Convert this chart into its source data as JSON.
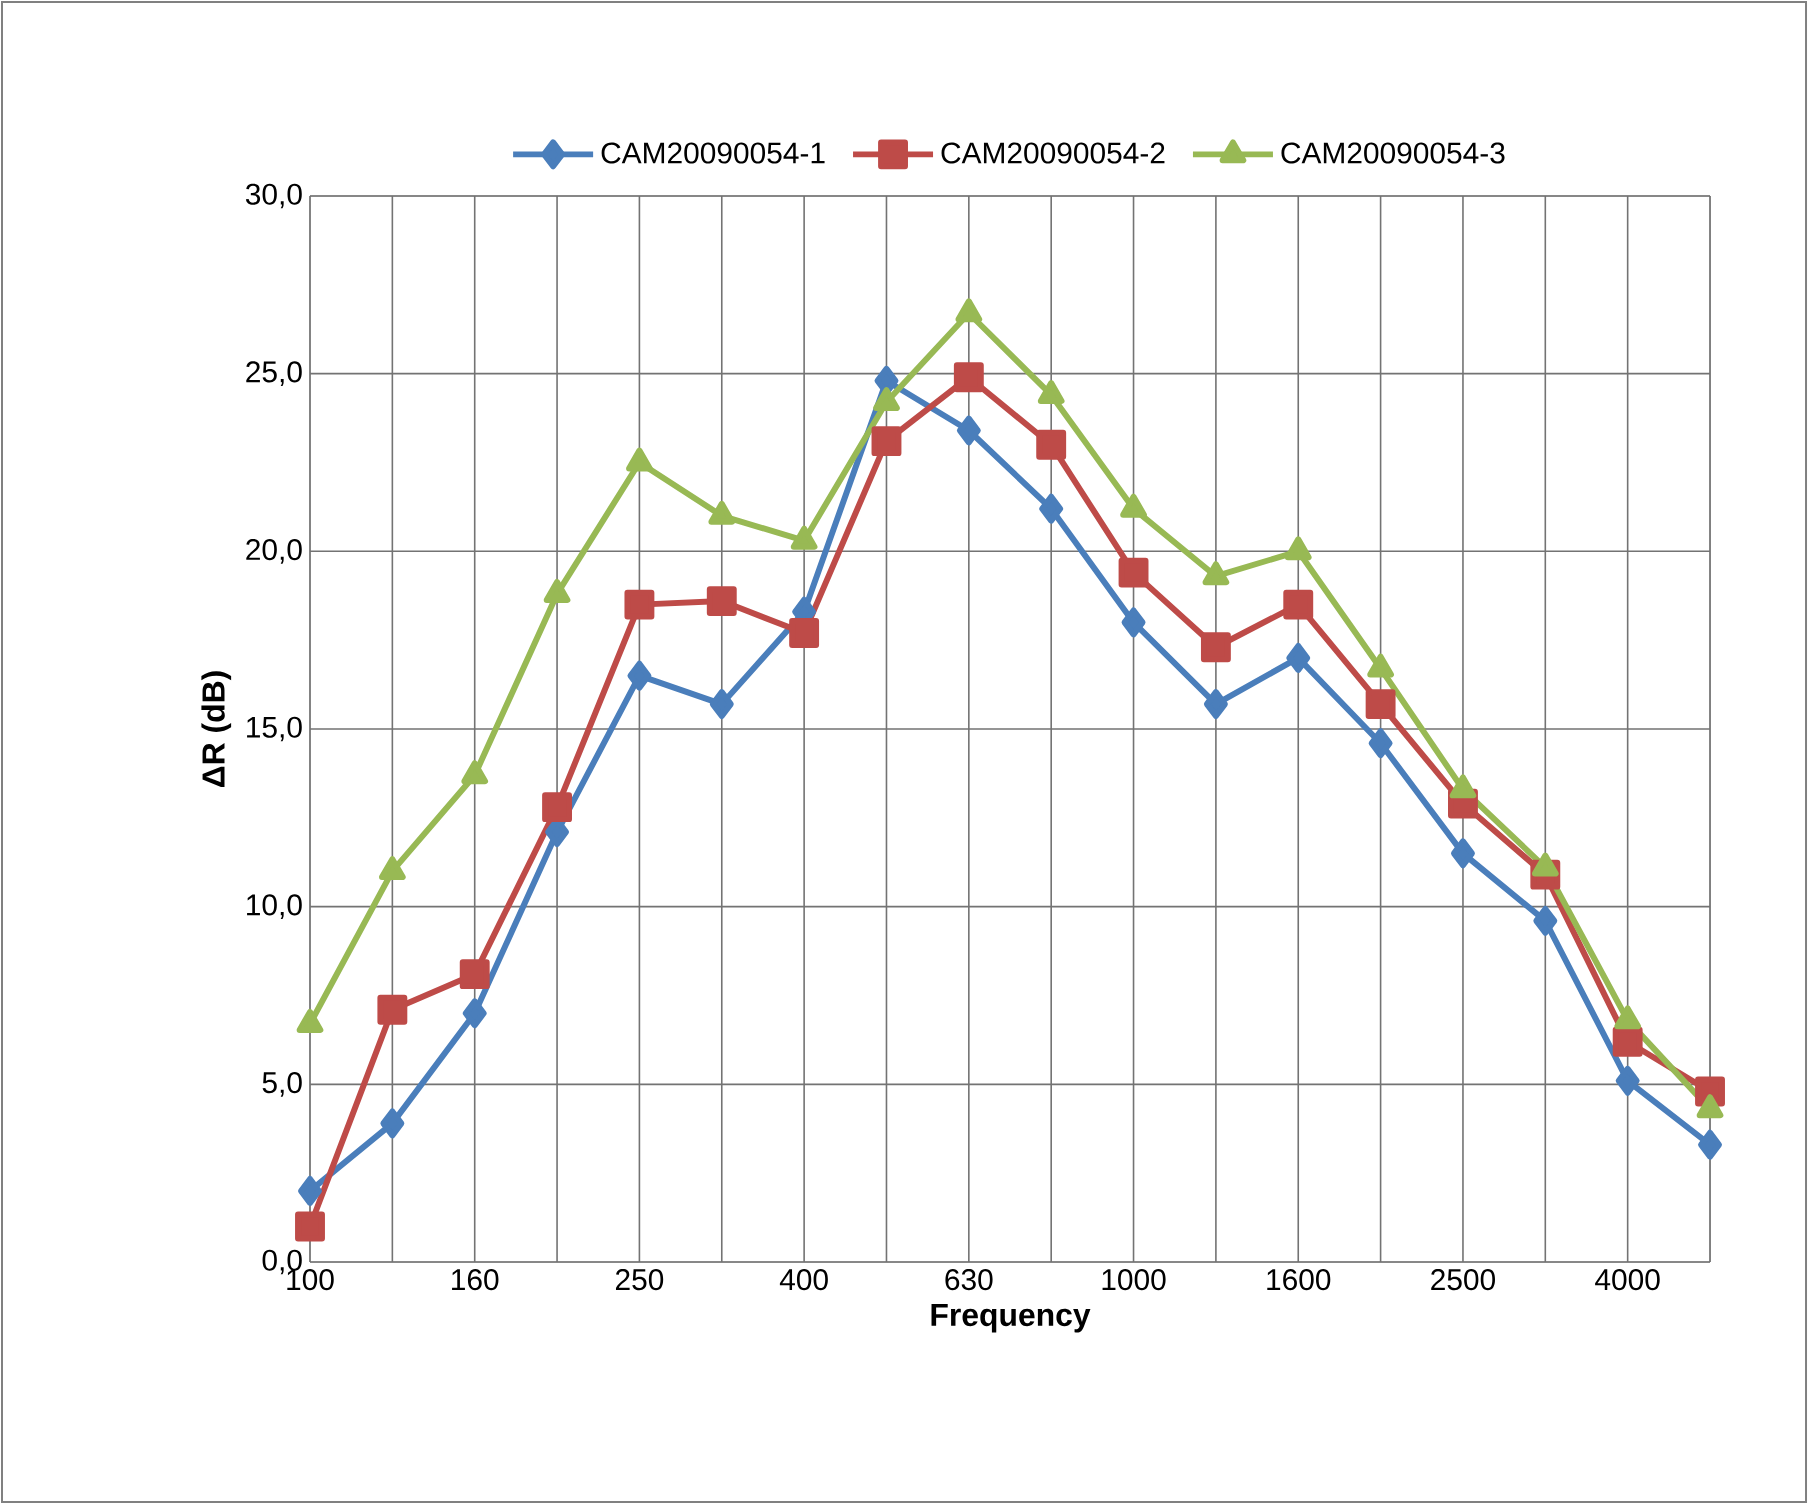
{
  "chart_data": {
    "type": "line",
    "xlabel": "Frequency",
    "ylabel": "ΔR (dB)",
    "categories": [
      "100",
      null,
      "160",
      null,
      "250",
      null,
      "400",
      null,
      "630",
      null,
      "1000",
      null,
      "1600",
      null,
      "2500",
      null,
      "4000",
      null
    ],
    "series": [
      {
        "name": "CAM20090054-1",
        "color": "#4a7ebb",
        "marker": "diamond",
        "values": [
          2.0,
          3.9,
          7.0,
          12.1,
          16.5,
          15.7,
          18.3,
          24.8,
          23.4,
          21.2,
          18.0,
          15.7,
          17.0,
          14.6,
          11.5,
          9.6,
          5.1,
          3.3
        ]
      },
      {
        "name": "CAM20090054-2",
        "color": "#be4b48",
        "marker": "square",
        "values": [
          1.0,
          7.1,
          8.1,
          12.8,
          18.5,
          18.6,
          17.7,
          23.1,
          24.9,
          23.0,
          19.4,
          17.3,
          18.5,
          15.7,
          12.9,
          10.9,
          6.2,
          4.8
        ]
      },
      {
        "name": "CAM20090054-3",
        "color": "#98b954",
        "marker": "triangle",
        "values": [
          6.7,
          11.0,
          13.7,
          18.8,
          22.5,
          21.0,
          20.3,
          24.2,
          26.7,
          24.4,
          21.2,
          19.3,
          20.0,
          16.7,
          13.3,
          11.1,
          6.8,
          4.3
        ]
      }
    ],
    "ylim": [
      0,
      30
    ],
    "yticks": [
      {
        "value": 0,
        "label": "0,0"
      },
      {
        "value": 5,
        "label": "5,0"
      },
      {
        "value": 10,
        "label": "10,0"
      },
      {
        "value": 15,
        "label": "15,0"
      },
      {
        "value": 20,
        "label": "20,0"
      },
      {
        "value": 25,
        "label": "25,0"
      },
      {
        "value": 30,
        "label": "30,0"
      }
    ],
    "grid": true,
    "legend": "top",
    "line_style": "solid"
  }
}
